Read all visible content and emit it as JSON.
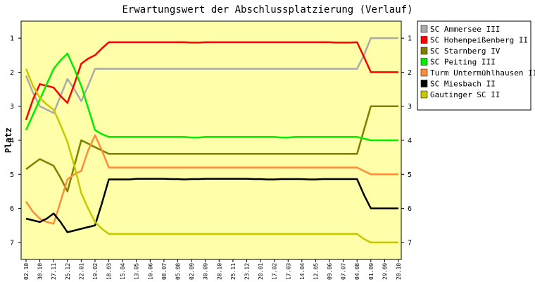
{
  "chart_data": {
    "type": "line",
    "title": "Erwartungswert der Abschlussplatzierung (Verlauf)",
    "ylabel": "Platz",
    "xlabel": "",
    "ylim": [
      7.5,
      0.5
    ],
    "y_ticks": [
      "1",
      "2",
      "3",
      "4",
      "5",
      "6",
      "7"
    ],
    "grid": false,
    "legend_position": "right",
    "plot_background": "#ffffaa",
    "categories": [
      "02.10",
      "30.10",
      "27.11",
      "25.12",
      "22.01",
      "19.02",
      "18.03",
      "15.04",
      "13.05",
      "10.06",
      "08.07",
      "05.08",
      "02.09",
      "30.09",
      "28.10",
      "25.11",
      "23.12",
      "20.01",
      "17.02",
      "17.03",
      "14.04",
      "12.05",
      "09.06",
      "07.07",
      "04.08",
      "01.09",
      "29.09",
      "20.10"
    ],
    "x": [
      0,
      0.5,
      1,
      1.5,
      2,
      2.5,
      3,
      3.5,
      4,
      4.5,
      5,
      5.5,
      6,
      6.5,
      7,
      7.5,
      8,
      8.5,
      9,
      9.5,
      10,
      10.5,
      11,
      11.5,
      12,
      12.5,
      13,
      13.5,
      14,
      14.5,
      15,
      15.5,
      16,
      16.5,
      17,
      17.5,
      18,
      18.5,
      19,
      19.5,
      20,
      20.5,
      21,
      21.5,
      22,
      22.5,
      23,
      23.5,
      24,
      24.5,
      25,
      25.5,
      26,
      26.5,
      27
    ],
    "series": [
      {
        "name": "SC Ammersee III",
        "color": "#aaaaaa",
        "values": [
          2.1,
          2.6,
          3.0,
          3.1,
          3.2,
          2.7,
          2.2,
          2.5,
          2.85,
          2.4,
          1.9,
          1.9,
          1.9,
          1.9,
          1.9,
          1.9,
          1.9,
          1.9,
          1.9,
          1.9,
          1.9,
          1.9,
          1.9,
          1.9,
          1.9,
          1.9,
          1.9,
          1.9,
          1.9,
          1.9,
          1.9,
          1.9,
          1.9,
          1.9,
          1.9,
          1.9,
          1.9,
          1.9,
          1.9,
          1.9,
          1.9,
          1.9,
          1.9,
          1.9,
          1.9,
          1.9,
          1.9,
          1.9,
          1.9,
          1.5,
          1.0,
          1.0,
          1.0,
          1.0,
          1.0
        ]
      },
      {
        "name": "SC Hohenpeißenberg II",
        "color": "#ff0000",
        "values": [
          3.4,
          2.8,
          2.35,
          2.4,
          2.45,
          2.7,
          2.9,
          2.35,
          1.75,
          1.6,
          1.5,
          1.3,
          1.12,
          1.12,
          1.12,
          1.12,
          1.12,
          1.12,
          1.12,
          1.12,
          1.12,
          1.12,
          1.12,
          1.12,
          1.13,
          1.13,
          1.12,
          1.12,
          1.12,
          1.12,
          1.12,
          1.12,
          1.12,
          1.12,
          1.12,
          1.12,
          1.12,
          1.12,
          1.12,
          1.12,
          1.12,
          1.12,
          1.12,
          1.12,
          1.12,
          1.13,
          1.13,
          1.13,
          1.12,
          1.55,
          2.0,
          2.0,
          2.0,
          2.0,
          2.0
        ]
      },
      {
        "name": "SC Starnberg IV",
        "color": "#808000",
        "values": [
          4.85,
          4.7,
          4.55,
          4.65,
          4.75,
          5.1,
          5.5,
          4.75,
          4.0,
          4.1,
          4.2,
          4.3,
          4.4,
          4.4,
          4.4,
          4.4,
          4.4,
          4.4,
          4.4,
          4.4,
          4.4,
          4.4,
          4.4,
          4.4,
          4.4,
          4.4,
          4.4,
          4.4,
          4.4,
          4.4,
          4.4,
          4.4,
          4.4,
          4.4,
          4.4,
          4.4,
          4.4,
          4.4,
          4.4,
          4.4,
          4.4,
          4.4,
          4.4,
          4.4,
          4.4,
          4.4,
          4.4,
          4.4,
          4.4,
          3.7,
          3.0,
          3.0,
          3.0,
          3.0,
          3.0
        ]
      },
      {
        "name": "SC Peiting III",
        "color": "#00ee00",
        "values": [
          3.7,
          3.25,
          2.8,
          2.35,
          1.9,
          1.65,
          1.45,
          1.9,
          2.4,
          3.05,
          3.7,
          3.82,
          3.9,
          3.9,
          3.9,
          3.9,
          3.9,
          3.9,
          3.9,
          3.9,
          3.9,
          3.9,
          3.9,
          3.9,
          3.92,
          3.92,
          3.9,
          3.9,
          3.9,
          3.9,
          3.9,
          3.9,
          3.9,
          3.9,
          3.9,
          3.9,
          3.9,
          3.92,
          3.92,
          3.9,
          3.9,
          3.9,
          3.9,
          3.9,
          3.9,
          3.9,
          3.9,
          3.9,
          3.9,
          3.95,
          4.0,
          4.0,
          4.0,
          4.0,
          4.0
        ]
      },
      {
        "name": "Turm Untermühlhausen II",
        "color": "#ff8c3a",
        "values": [
          5.8,
          6.1,
          6.3,
          6.4,
          6.45,
          5.8,
          5.15,
          5.0,
          4.9,
          4.3,
          3.85,
          4.3,
          4.8,
          4.8,
          4.8,
          4.8,
          4.8,
          4.8,
          4.8,
          4.8,
          4.8,
          4.8,
          4.8,
          4.8,
          4.8,
          4.8,
          4.8,
          4.8,
          4.8,
          4.8,
          4.8,
          4.8,
          4.8,
          4.8,
          4.8,
          4.8,
          4.8,
          4.8,
          4.8,
          4.8,
          4.8,
          4.8,
          4.8,
          4.8,
          4.8,
          4.8,
          4.8,
          4.8,
          4.8,
          4.9,
          5.0,
          5.0,
          5.0,
          5.0,
          5.0
        ]
      },
      {
        "name": "SC Miesbach II",
        "color": "#000000",
        "values": [
          6.3,
          6.35,
          6.4,
          6.3,
          6.15,
          6.4,
          6.7,
          6.65,
          6.6,
          6.55,
          6.5,
          5.85,
          5.15,
          5.15,
          5.15,
          5.15,
          5.13,
          5.13,
          5.13,
          5.13,
          5.13,
          5.14,
          5.14,
          5.15,
          5.14,
          5.14,
          5.13,
          5.13,
          5.13,
          5.13,
          5.13,
          5.13,
          5.13,
          5.14,
          5.14,
          5.15,
          5.15,
          5.14,
          5.14,
          5.14,
          5.14,
          5.15,
          5.15,
          5.14,
          5.14,
          5.14,
          5.14,
          5.14,
          5.14,
          5.6,
          6.0,
          6.0,
          6.0,
          6.0,
          6.0
        ]
      },
      {
        "name": "Gautinger SC II",
        "color": "#c8c800",
        "values": [
          1.9,
          2.4,
          2.75,
          2.95,
          3.1,
          3.55,
          4.05,
          4.75,
          5.55,
          6.0,
          6.4,
          6.6,
          6.75,
          6.75,
          6.75,
          6.75,
          6.75,
          6.75,
          6.75,
          6.75,
          6.75,
          6.75,
          6.75,
          6.75,
          6.75,
          6.75,
          6.75,
          6.75,
          6.75,
          6.75,
          6.75,
          6.75,
          6.75,
          6.75,
          6.75,
          6.75,
          6.75,
          6.75,
          6.75,
          6.75,
          6.75,
          6.75,
          6.75,
          6.75,
          6.75,
          6.75,
          6.75,
          6.75,
          6.75,
          6.9,
          7.0,
          7.0,
          7.0,
          7.0,
          7.0
        ]
      }
    ]
  }
}
